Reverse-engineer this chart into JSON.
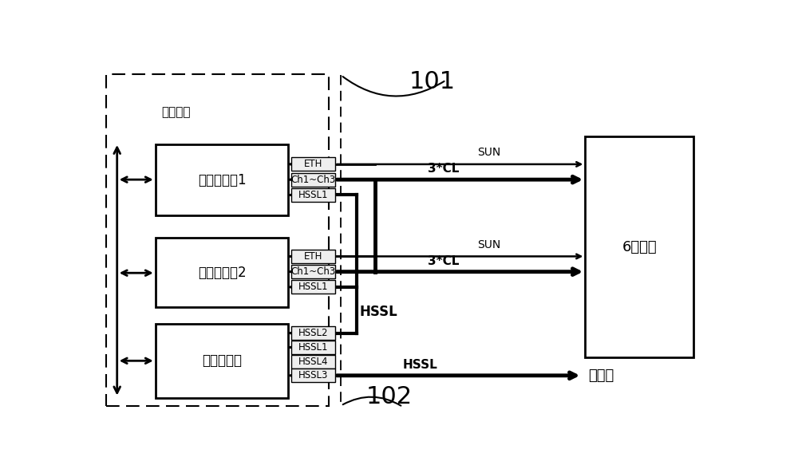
{
  "fig_w": 10.0,
  "fig_h": 5.93,
  "label_101": "101",
  "label_102": "102",
  "label_control_box": "控制机箱",
  "label_board1": "图像处理板1",
  "label_board2": "图像处理板2",
  "label_board3": "多点拟合板",
  "label_camera": "6个相机",
  "label_workbench": "工件台",
  "label_ETH": "ETH",
  "label_Ch1Ch3": "Ch1~Ch3",
  "label_HSSL1": "HSSL1",
  "label_HSSL2": "HSSL2",
  "label_HSSL1b": "HSSL1",
  "label_HSSL4": "HSSL4",
  "label_HSSL3": "HSSL3",
  "label_SUN": "SUN",
  "label_3CL": "3*CL",
  "label_HSSL_bold": "HSSL"
}
